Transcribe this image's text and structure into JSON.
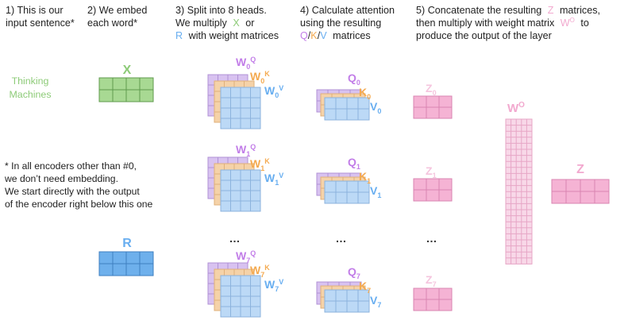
{
  "colors": {
    "purple": "#c27ee8",
    "orange": "#f4aa50",
    "blue": "#68aef0",
    "green": "#8dcb78",
    "pink": "#f2a9cf",
    "pink_light": "#f5c5de",
    "faded_purple": "#d8c2f0",
    "faded_orange": "#f5d2a8",
    "faded_blue": "#bcd9f6",
    "x_fill": "#a8d993",
    "r_fill": "#6eb0ec",
    "z_fill": "#f5b3d4",
    "wo_fill": "#f8d8e8"
  },
  "steps": {
    "s1": [
      "1) This is our",
      "input sentence*"
    ],
    "s2": [
      "2) We embed",
      "each word*"
    ],
    "s3": {
      "line1": "3) Split into 8 heads.",
      "line2": "We multiply",
      "x": "X",
      "or": "or",
      "r": "R",
      "rest": "with weight matrices"
    },
    "s4": {
      "line1": "4) Calculate attention",
      "line2": "using the resulting",
      "q": "Q",
      "k": "K",
      "v": "V",
      "slash": "/",
      "rest": "matrices"
    },
    "s5": {
      "a": "5) Concatenate the resulting",
      "z": "Z",
      "b": "matrices,",
      "c": "then multiply with weight matrix",
      "wo": "W",
      "wo_sup": "O",
      "d": "to",
      "e": "produce the output of the layer"
    }
  },
  "input": [
    "Thinking",
    "Machines"
  ],
  "note": [
    "* In all encoders other than #0,",
    "we don’t need embedding.",
    "We start directly with the output",
    "of the encoder right below this one"
  ],
  "labels": {
    "x": "X",
    "r": "R",
    "w": "W",
    "q_sup": "Q",
    "k_sup": "K",
    "v_sup": "V",
    "q": "Q",
    "k": "K",
    "v": "V",
    "z": "Z",
    "wo": "W",
    "wo_sup": "O",
    "dots": "…"
  },
  "heads": [
    "0",
    "1",
    "7"
  ]
}
